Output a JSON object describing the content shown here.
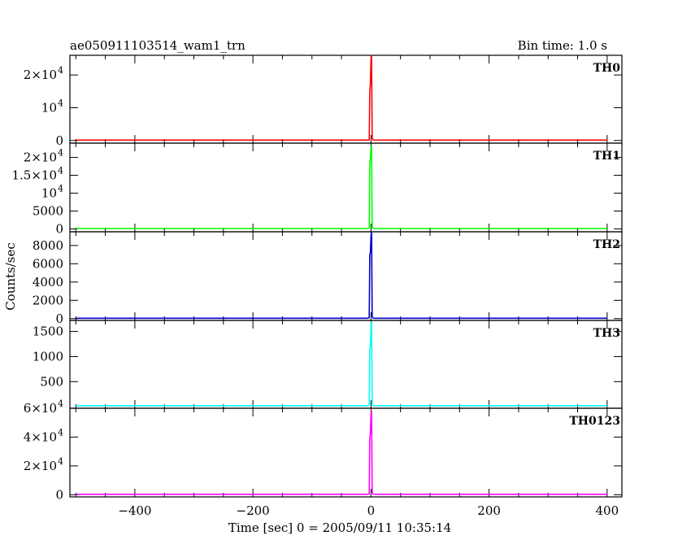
{
  "chart_data": {
    "type": "line",
    "title": "ae050911103514_wam1_trn",
    "subtitle": "Bin time: 1.0 s",
    "xlabel": "Time [sec] 0 = 2005/09/11 10:35:14",
    "ylabel": "Counts/sec",
    "xlim": [
      -510,
      425
    ],
    "x_ticks": [
      {
        "value": -400,
        "label": "−400"
      },
      {
        "value": -200,
        "label": "−200"
      },
      {
        "value": 0,
        "label": "0"
      },
      {
        "value": 200,
        "label": "200"
      },
      {
        "value": 400,
        "label": "400"
      }
    ],
    "grid": false,
    "legend": "none",
    "panels": [
      {
        "name": "TH0",
        "color": "#ff0000",
        "ylim": [
          -800,
          26000
        ],
        "y_ticks": [
          {
            "value": 0,
            "label": "0",
            "sup": ""
          },
          {
            "value": 10000,
            "label": "10",
            "sup": "4"
          },
          {
            "value": 20000,
            "label": "2×10",
            "sup": "4"
          }
        ],
        "x": [
          -500,
          -6,
          -3,
          -2,
          -1,
          0,
          1,
          2,
          3,
          4,
          6,
          20,
          400
        ],
        "y": [
          120,
          120,
          200,
          15000,
          17000,
          25000,
          26000,
          800,
          300,
          150,
          120,
          120,
          120
        ]
      },
      {
        "name": "TH1",
        "color": "#00ff00",
        "ylim": [
          -800,
          24000
        ],
        "y_ticks": [
          {
            "value": 0,
            "label": "0",
            "sup": ""
          },
          {
            "value": 5000,
            "label": "5000",
            "sup": ""
          },
          {
            "value": 10000,
            "label": "10",
            "sup": "4"
          },
          {
            "value": 15000,
            "label": "1.5×10",
            "sup": "4"
          },
          {
            "value": 20000,
            "label": "2×10",
            "sup": "4"
          }
        ],
        "x": [
          -500,
          -6,
          -3,
          -2,
          -1,
          0,
          1,
          2,
          3,
          4,
          6,
          20,
          400
        ],
        "y": [
          120,
          120,
          300,
          18000,
          20000,
          22500,
          23000,
          800,
          300,
          150,
          120,
          120,
          120
        ]
      },
      {
        "name": "TH2",
        "color": "#0000cc",
        "ylim": [
          -200,
          9500
        ],
        "y_ticks": [
          {
            "value": 0,
            "label": "0",
            "sup": ""
          },
          {
            "value": 2000,
            "label": "2000",
            "sup": ""
          },
          {
            "value": 4000,
            "label": "4000",
            "sup": ""
          },
          {
            "value": 6000,
            "label": "6000",
            "sup": ""
          },
          {
            "value": 8000,
            "label": "8000",
            "sup": ""
          }
        ],
        "x": [
          -500,
          -6,
          -3,
          -2,
          -1,
          0,
          1,
          2,
          3,
          4,
          6,
          20,
          400
        ],
        "y": [
          40,
          40,
          100,
          7000,
          7200,
          9000,
          9400,
          300,
          100,
          50,
          40,
          40,
          40
        ]
      },
      {
        "name": "TH3",
        "color": "#00ffff",
        "ylim": [
          -30,
          1720
        ],
        "y_ticks": [
          {
            "value": 500,
            "label": "500",
            "sup": ""
          },
          {
            "value": 1000,
            "label": "1000",
            "sup": ""
          },
          {
            "value": 1500,
            "label": "1500",
            "sup": ""
          }
        ],
        "x": [
          -500,
          -6,
          -3,
          -2,
          -1,
          0,
          1,
          2,
          3,
          4,
          6,
          20,
          400
        ],
        "y": [
          20,
          20,
          40,
          1150,
          1200,
          1600,
          1700,
          60,
          30,
          25,
          20,
          20,
          20
        ]
      },
      {
        "name": "TH0123",
        "color": "#ff00ff",
        "ylim": [
          -1500,
          60000
        ],
        "y_ticks": [
          {
            "value": 0,
            "label": "0",
            "sup": ""
          },
          {
            "value": 20000,
            "label": "2×10",
            "sup": "4"
          },
          {
            "value": 40000,
            "label": "4×10",
            "sup": "4"
          },
          {
            "value": 60000,
            "label": "6×10",
            "sup": "4"
          }
        ],
        "x": [
          -500,
          -6,
          -3,
          -2,
          -1,
          0,
          1,
          2,
          3,
          4,
          6,
          20,
          400
        ],
        "y": [
          300,
          300,
          600,
          40000,
          42000,
          56000,
          58000,
          1800,
          700,
          400,
          300,
          300,
          300
        ]
      }
    ]
  }
}
